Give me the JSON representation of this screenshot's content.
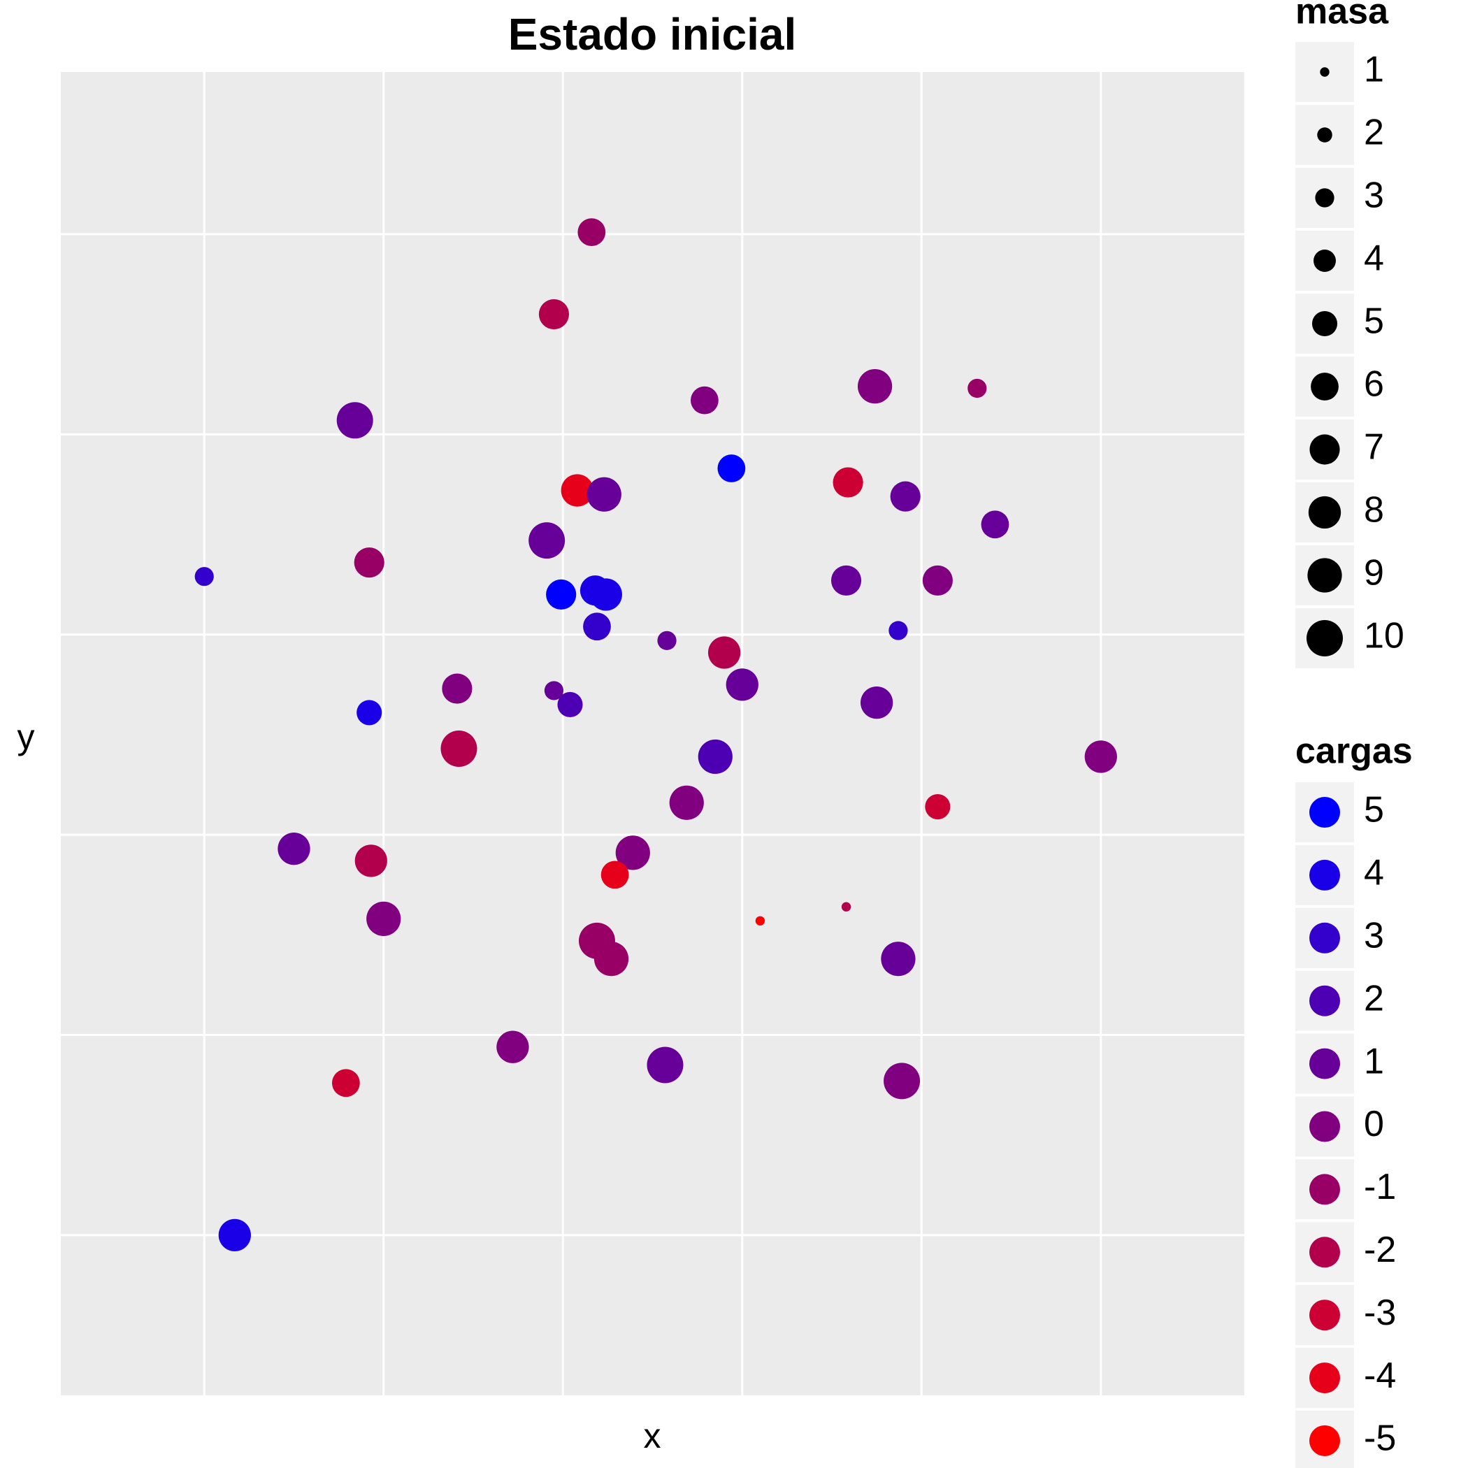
{
  "chart_data": {
    "type": "scatter",
    "title": "Estado inicial",
    "x_label": "x",
    "y_label": "y",
    "xlim": [
      -0.8,
      5.8
    ],
    "ylim": [
      -0.8,
      5.81
    ],
    "grid": true,
    "xgrid": [
      0,
      1,
      2,
      3,
      4,
      5
    ],
    "ygrid": [
      0,
      1,
      2,
      3,
      4,
      5
    ],
    "x": [
      2.16,
      1.95,
      3.74,
      4.31,
      2.79,
      0.84,
      2.94,
      2.08,
      2.23,
      3.59,
      3.91,
      4.41,
      1.91,
      0.92,
      0.0,
      1.99,
      2.18,
      2.24,
      3.58,
      4.09,
      2.19,
      3.87,
      2.58,
      2.9,
      1.41,
      1.95,
      2.04,
      3.0,
      3.75,
      0.92,
      1.42,
      2.85,
      5.0,
      2.69,
      4.09,
      0.5,
      2.39,
      0.93,
      2.29,
      3.1,
      3.58,
      1.0,
      2.19,
      2.27,
      3.87,
      1.72,
      2.57,
      3.89,
      0.79,
      0.17
    ],
    "y": [
      5.01,
      4.6,
      4.24,
      4.23,
      4.17,
      4.07,
      3.83,
      3.72,
      3.7,
      3.76,
      3.69,
      3.55,
      3.47,
      3.36,
      3.29,
      3.2,
      3.22,
      3.2,
      3.27,
      3.27,
      3.04,
      3.02,
      2.97,
      2.91,
      2.73,
      2.72,
      2.65,
      2.75,
      2.66,
      2.61,
      2.43,
      2.39,
      2.39,
      2.16,
      2.14,
      1.93,
      1.91,
      1.87,
      1.8,
      1.57,
      1.64,
      1.58,
      1.47,
      1.38,
      1.38,
      0.94,
      0.85,
      0.77,
      0.76,
      0.0
    ],
    "masa": [
      6,
      7,
      9,
      3,
      6,
      10,
      6,
      8,
      9,
      7,
      7,
      6,
      10,
      7,
      3,
      7,
      7,
      8,
      7,
      7,
      6,
      3,
      3,
      8,
      7,
      3,
      5,
      8,
      8,
      5,
      10,
      9,
      8,
      9,
      5,
      8,
      9,
      8,
      6,
      1,
      1,
      9,
      10,
      9,
      9,
      8,
      10,
      10,
      6,
      8
    ],
    "cargas": [
      -1,
      -2,
      0,
      -1,
      0,
      1,
      5,
      -4,
      1,
      -3,
      1,
      1,
      1,
      -1,
      3,
      5,
      4,
      4,
      1,
      0,
      3,
      3,
      1,
      -2,
      0,
      1,
      2,
      1,
      1,
      4,
      -2,
      2,
      0,
      0,
      -3,
      1,
      0,
      -2,
      -4,
      -5,
      -2,
      0,
      -1,
      -1,
      1,
      0,
      1,
      0,
      -3,
      4
    ],
    "size_legend": {
      "title": "masa",
      "values": [
        1,
        2,
        3,
        4,
        5,
        6,
        7,
        8,
        9,
        10
      ]
    },
    "color_legend": {
      "title": "cargas",
      "values": [
        5,
        4,
        3,
        2,
        1,
        0,
        -1,
        -2,
        -3,
        -4,
        -5
      ],
      "low_color": "#ff0000",
      "high_color": "#0000ff"
    },
    "legend_position": "right"
  }
}
